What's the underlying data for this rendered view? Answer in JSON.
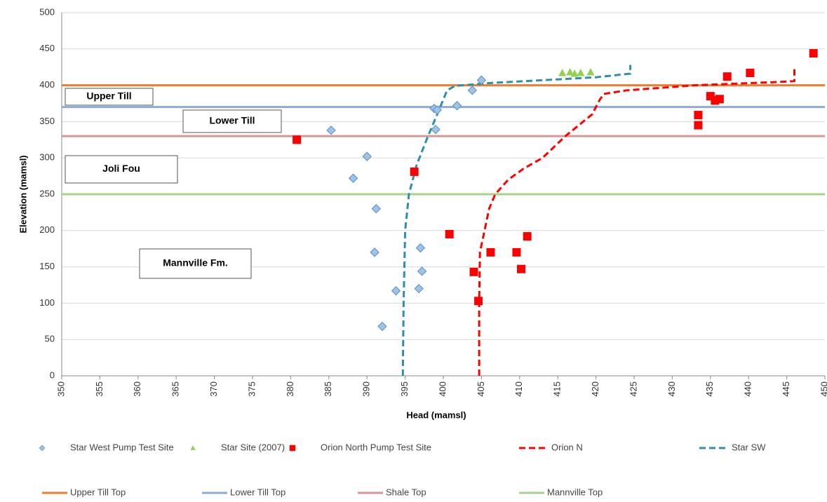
{
  "chart_data": {
    "type": "scatter",
    "x_label": "Head (mamsl)",
    "y_label": "Elevation (mamsl)",
    "xlim": [
      350,
      450
    ],
    "ylim": [
      0,
      500
    ],
    "xticks": [
      350,
      355,
      360,
      365,
      370,
      375,
      380,
      385,
      390,
      395,
      400,
      405,
      410,
      415,
      420,
      425,
      430,
      435,
      440,
      445,
      450
    ],
    "yticks": [
      0,
      50,
      100,
      150,
      200,
      250,
      300,
      350,
      400,
      450,
      500
    ],
    "grid": true,
    "series": [
      {
        "name": "Star West Pump Test Site",
        "marker": "diamond",
        "color": "#9dc3e6",
        "x": [
          385.3,
          388.2,
          390,
          391.2,
          391,
          392,
          393.8,
          396.8,
          397,
          397.2,
          398.8,
          399.2,
          399,
          401.8,
          403.8,
          405
        ],
        "values": [
          338,
          272,
          302,
          230,
          170,
          68,
          117,
          120,
          176,
          144,
          368,
          366,
          339,
          372,
          393,
          407
        ]
      },
      {
        "name": "Star Site (2007)",
        "marker": "triangle",
        "color": "#92d050",
        "x": [
          415.6,
          416.6,
          417.2,
          418,
          419.3
        ],
        "values": [
          417,
          418,
          416,
          417,
          418
        ]
      },
      {
        "name": "Orion North Pump Test Site",
        "marker": "square",
        "color": "#ff0000",
        "x": [
          380.8,
          396.2,
          400.8,
          404,
          404.6,
          406.2,
          409.6,
          410.2,
          411,
          433.4,
          433.4,
          435,
          435.6,
          436.2,
          437.2,
          440.2,
          448.5
        ],
        "values": [
          325,
          281,
          195,
          143,
          103,
          170,
          170,
          147,
          192,
          359,
          345,
          385,
          379,
          381,
          412,
          417,
          444
        ]
      },
      {
        "name": "Orion N",
        "marker": "dashed-line",
        "color": "#ff0000",
        "x": [
          404.7,
          404.7,
          404.8,
          405.4,
          406,
          406.8,
          408.5,
          410.5,
          413,
          416,
          419.5,
          420.5,
          421,
          424,
          433,
          445,
          446,
          446
        ],
        "values": [
          0,
          100,
          170,
          200,
          230,
          250,
          270,
          285,
          300,
          330,
          360,
          380,
          388,
          393,
          400,
          405,
          406,
          423
        ]
      },
      {
        "name": "Star SW",
        "marker": "dashed-line",
        "color": "#2e8fa8",
        "x": [
          394.7,
          394.8,
          395,
          395.5,
          396.5,
          398,
          399.2,
          400.5,
          401.5,
          406,
          420,
          424.5,
          424.5
        ],
        "values": [
          0,
          100,
          200,
          250,
          290,
          330,
          360,
          393,
          399,
          403,
          411,
          416,
          428
        ]
      }
    ],
    "hlines": [
      {
        "name": "Upper Till Top",
        "color": "#ed7d31",
        "value": 400
      },
      {
        "name": "Lower Till Top",
        "color": "#8ea9db",
        "value": 370
      },
      {
        "name": "Shale Top",
        "color": "#d99694",
        "value": 330
      },
      {
        "name": "Mannville Top",
        "color": "#a9d18e",
        "value": 250
      }
    ],
    "annotations": [
      "Upper Till",
      "Lower Till",
      "Joli Fou",
      "Mannville Fm."
    ]
  }
}
